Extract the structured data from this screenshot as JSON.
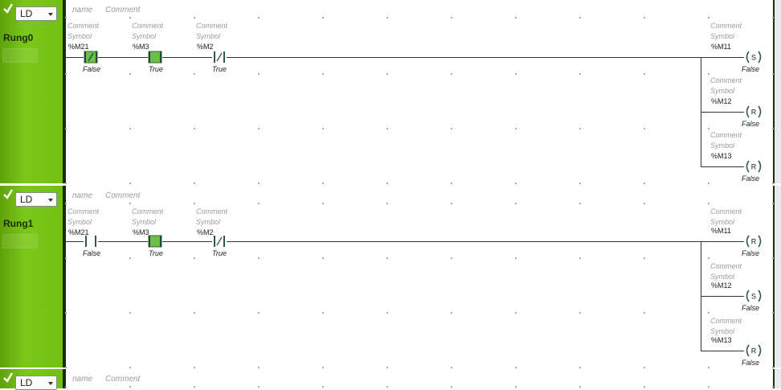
{
  "rungs": [
    {
      "language": "LD",
      "name_label": "Rung0",
      "header": {
        "name": "name",
        "comment": "Comment"
      },
      "contacts": [
        {
          "comment": "Comment",
          "symbol": "Symbol",
          "address": "%M21",
          "state": "False",
          "kind": "nc",
          "energized": true
        },
        {
          "comment": "Comment",
          "symbol": "Symbol",
          "address": "%M3",
          "state": "True",
          "kind": "no",
          "energized": true
        },
        {
          "comment": "Comment",
          "symbol": "Symbol",
          "address": "%M2",
          "state": "True",
          "kind": "nc",
          "energized": false
        }
      ],
      "coils": [
        {
          "comment": "Comment",
          "symbol": "Symbol",
          "address": "%M11",
          "type": "S",
          "state": "False"
        },
        {
          "comment": "Comment",
          "symbol": "Symbol",
          "address": "%M12",
          "type": "R",
          "state": "False"
        },
        {
          "comment": "Comment",
          "symbol": "Symbol",
          "address": "%M13",
          "type": "R",
          "state": "False"
        }
      ]
    },
    {
      "language": "LD",
      "name_label": "Rung1",
      "header": {
        "name": "name",
        "comment": "Comment"
      },
      "contacts": [
        {
          "comment": "Comment",
          "symbol": "Symbol",
          "address": "%M21",
          "state": "False",
          "kind": "no",
          "energized": false
        },
        {
          "comment": "Comment",
          "symbol": "Symbol",
          "address": "%M3",
          "state": "True",
          "kind": "no",
          "energized": true
        },
        {
          "comment": "Comment",
          "symbol": "Symbol",
          "address": "%M2",
          "state": "True",
          "kind": "nc",
          "energized": false
        }
      ],
      "coils": [
        {
          "comment": "Comment",
          "symbol": "Symbol",
          "address": "%M11",
          "type": "R",
          "state": "False"
        },
        {
          "comment": "Comment",
          "symbol": "Symbol",
          "address": "%M12",
          "type": "S",
          "state": "False"
        },
        {
          "comment": "Comment",
          "symbol": "Symbol",
          "address": "%M13",
          "type": "R",
          "state": "False"
        }
      ]
    },
    {
      "language": "LD",
      "header": {
        "name": "name",
        "comment": "Comment"
      }
    }
  ],
  "icons": {
    "enabled": "check-icon",
    "dropdown": "chevron-down-icon"
  },
  "colors": {
    "rung_green": "#72be12",
    "energized_fill": "#6cc04a",
    "rail": "#1c2a10"
  }
}
